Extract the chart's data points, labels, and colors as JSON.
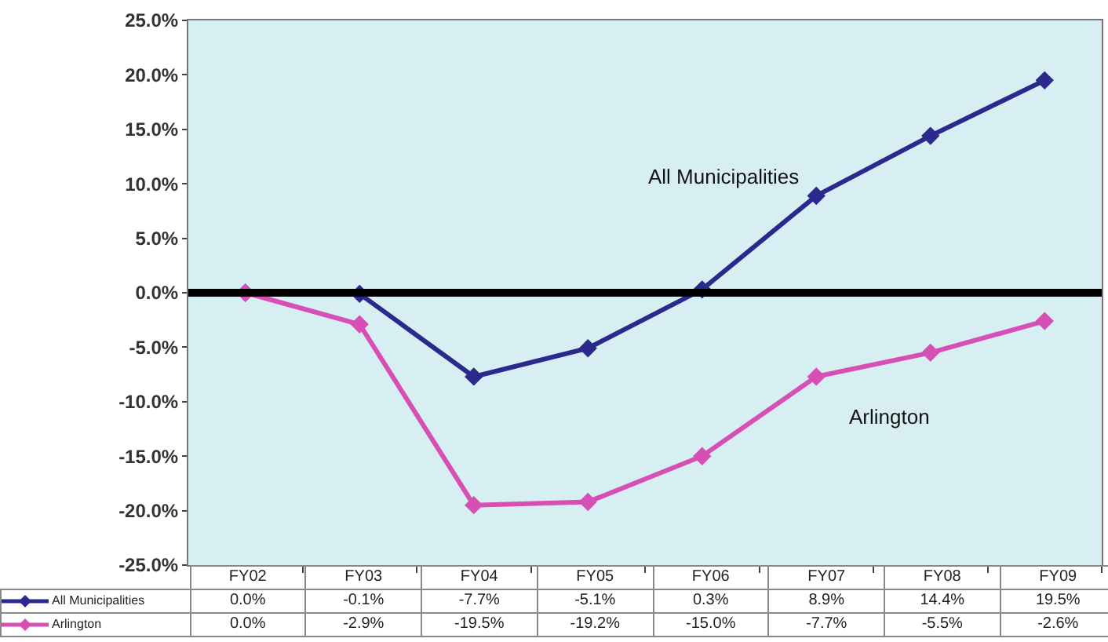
{
  "chart_data": {
    "type": "line",
    "categories": [
      "FY02",
      "FY03",
      "FY04",
      "FY05",
      "FY06",
      "FY07",
      "FY08",
      "FY09"
    ],
    "series": [
      {
        "name": "All Municipalities",
        "color": "#2b2a8c",
        "values": [
          0.0,
          -0.1,
          -7.7,
          -5.1,
          0.3,
          8.9,
          14.4,
          19.5
        ],
        "value_labels": [
          "0.0%",
          "-0.1%",
          "-7.7%",
          "-5.1%",
          "0.3%",
          "8.9%",
          "14.4%",
          "19.5%"
        ]
      },
      {
        "name": "Arlington",
        "color": "#d64fb4",
        "values": [
          0.0,
          -2.9,
          -19.5,
          -19.2,
          -15.0,
          -7.7,
          -5.5,
          -2.6
        ],
        "value_labels": [
          "0.0%",
          "-2.9%",
          "-19.5%",
          "-19.2%",
          "-15.0%",
          "-7.7%",
          "-5.5%",
          "-2.6%"
        ]
      }
    ],
    "ylim": [
      -25,
      25
    ],
    "yticks": [
      {
        "value": -25,
        "label": "-25.0%"
      },
      {
        "value": -20,
        "label": "-20.0%"
      },
      {
        "value": -15,
        "label": "-15.0%"
      },
      {
        "value": -10,
        "label": "-10.0%"
      },
      {
        "value": -5,
        "label": "-5.0%"
      },
      {
        "value": 0,
        "label": "0.0%"
      },
      {
        "value": 5,
        "label": "5.0%"
      },
      {
        "value": 10,
        "label": "10.0%"
      },
      {
        "value": 15,
        "label": "15.0%"
      },
      {
        "value": 20,
        "label": "20.0%"
      },
      {
        "value": 25,
        "label": "25.0%"
      }
    ],
    "tick_labels": "y",
    "marker": "diamond",
    "legend": "bottom left",
    "ref_lines": [
      {
        "axis": "y",
        "value": 0,
        "color": "#000000"
      }
    ],
    "annotations": [
      "All Municipalities",
      "Arlington"
    ]
  }
}
